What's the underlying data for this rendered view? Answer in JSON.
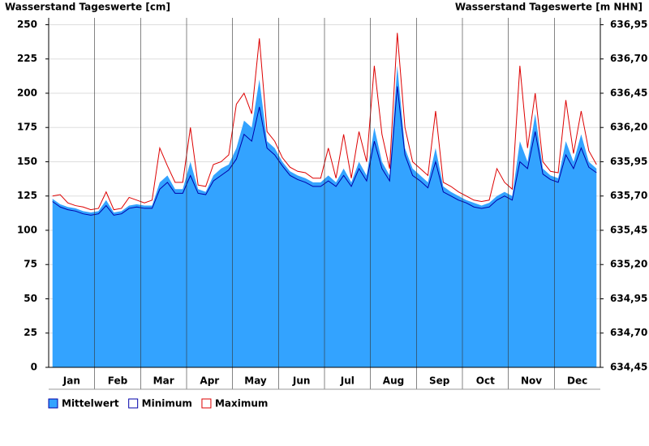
{
  "chart_data": {
    "type": "area-line",
    "title": "Wasserstand Tageswerte [cm]",
    "title_right": "Wasserstand Tageswerte [m NHN]",
    "categories": [
      null,
      null,
      null,
      "Jan",
      null,
      null,
      null,
      null,
      null,
      "Feb",
      null,
      null,
      null,
      null,
      null,
      "Mar",
      null,
      null,
      null,
      null,
      null,
      "Apr",
      null,
      null,
      null,
      null,
      null,
      "May",
      null,
      null,
      null,
      null,
      null,
      "Jun",
      null,
      null,
      null,
      null,
      null,
      "Jul",
      null,
      null,
      null,
      null,
      null,
      "Aug",
      null,
      null,
      null,
      null,
      null,
      "Sep",
      null,
      null,
      null,
      null,
      null,
      "Oct",
      null,
      null,
      null,
      null,
      null,
      "Nov",
      null,
      null,
      null,
      null,
      null,
      "Dec",
      null,
      null
    ],
    "series": [
      {
        "name": "Mittelwert",
        "color": "#33a3ff",
        "values": [
          123,
          119,
          117,
          116,
          114,
          113,
          114,
          122,
          113,
          114,
          118,
          119,
          118,
          118,
          135,
          140,
          130,
          130,
          150,
          130,
          128,
          140,
          145,
          148,
          160,
          180,
          175,
          210,
          165,
          160,
          150,
          143,
          140,
          138,
          135,
          135,
          140,
          135,
          145,
          135,
          150,
          140,
          175,
          150,
          140,
          220,
          160,
          145,
          140,
          135,
          160,
          132,
          128,
          125,
          122,
          120,
          118,
          120,
          125,
          128,
          125,
          165,
          150,
          185,
          145,
          140,
          138,
          165,
          150,
          170,
          150,
          145
        ]
      },
      {
        "name": "Minimum",
        "color": "#0000aa",
        "values": [
          121,
          117,
          115,
          114,
          112,
          111,
          112,
          118,
          111,
          112,
          116,
          117,
          116,
          116,
          130,
          135,
          127,
          127,
          140,
          127,
          126,
          136,
          140,
          144,
          152,
          170,
          165,
          190,
          160,
          155,
          147,
          140,
          137,
          135,
          132,
          132,
          136,
          132,
          140,
          132,
          145,
          136,
          165,
          145,
          136,
          205,
          155,
          140,
          136,
          131,
          150,
          128,
          125,
          122,
          120,
          117,
          116,
          117,
          122,
          125,
          122,
          150,
          145,
          172,
          141,
          137,
          135,
          155,
          145,
          160,
          146,
          142
        ]
      },
      {
        "name": "Maximum",
        "color": "#dd0000",
        "values": [
          125,
          126,
          120,
          118,
          117,
          115,
          116,
          128,
          115,
          116,
          124,
          122,
          120,
          122,
          160,
          147,
          135,
          135,
          175,
          133,
          132,
          148,
          150,
          155,
          192,
          200,
          185,
          240,
          172,
          165,
          153,
          146,
          143,
          142,
          138,
          138,
          160,
          138,
          170,
          138,
          172,
          150,
          220,
          170,
          145,
          244,
          175,
          150,
          145,
          140,
          187,
          135,
          132,
          128,
          125,
          122,
          121,
          122,
          145,
          135,
          130,
          220,
          160,
          200,
          150,
          143,
          142,
          195,
          156,
          187,
          158,
          148
        ]
      }
    ],
    "ylim": [
      0,
      255
    ],
    "yticks": [
      0,
      25,
      50,
      75,
      100,
      125,
      150,
      175,
      200,
      225,
      250
    ],
    "y2lim": [
      634.45,
      637.0
    ],
    "y2ticks": [
      {
        "value": 634.45,
        "label": "634,45"
      },
      {
        "value": 634.7,
        "label": "634,70"
      },
      {
        "value": 634.95,
        "label": "634,95"
      },
      {
        "value": 635.2,
        "label": "635,20"
      },
      {
        "value": 635.45,
        "label": "635,45"
      },
      {
        "value": 635.7,
        "label": "635,70"
      },
      {
        "value": 635.95,
        "label": "635,95"
      },
      {
        "value": 636.2,
        "label": "636,20"
      },
      {
        "value": 636.45,
        "label": "636,45"
      },
      {
        "value": 636.7,
        "label": "636,70"
      },
      {
        "value": 636.95,
        "label": "636,95"
      }
    ],
    "grid": true
  }
}
